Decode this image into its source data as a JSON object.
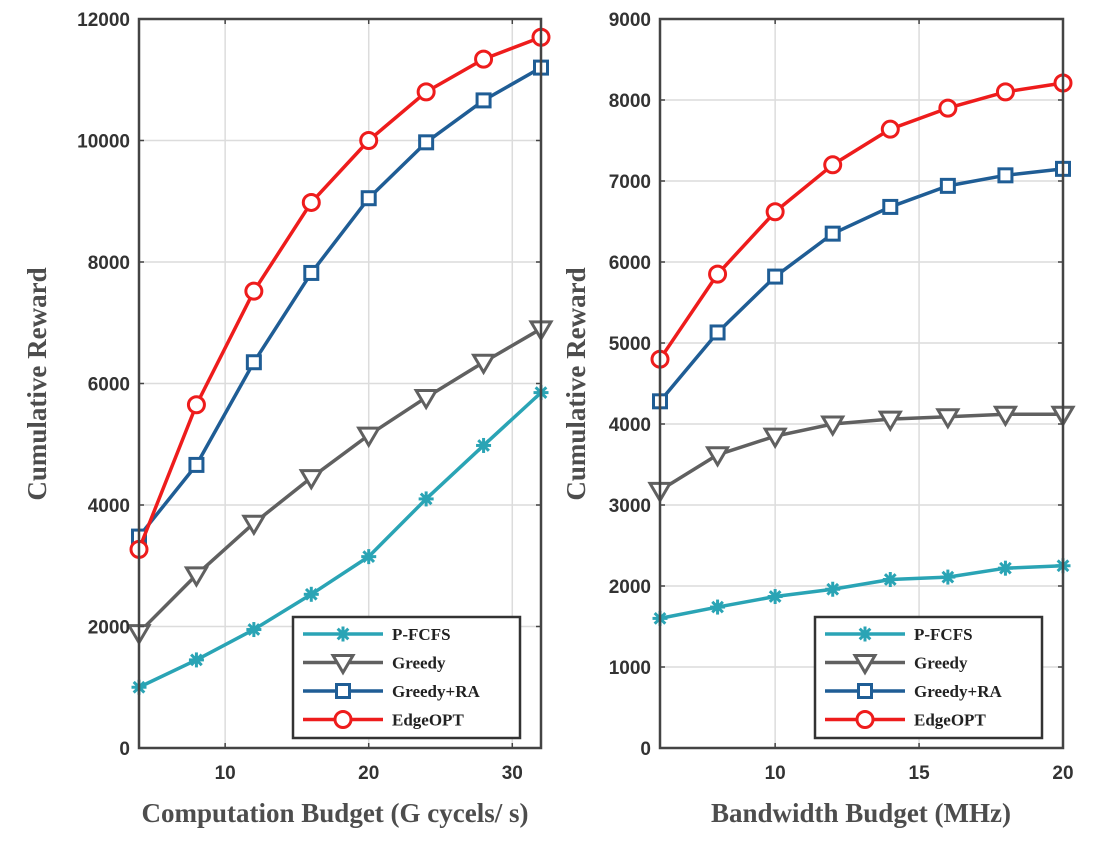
{
  "colors": {
    "P-FCFS": "#2aa4b5",
    "Greedy": "#606060",
    "Greedy+RA": "#1f5d95",
    "EdgeOPT": "#ee1c1c"
  },
  "chart_data": [
    {
      "type": "line",
      "xlabel": "Computation Budget (G cycels/ s)",
      "ylabel": "Cumulative Reward",
      "xlim": [
        4,
        32
      ],
      "ylim": [
        0,
        12000
      ],
      "xticks": [
        10,
        20,
        30
      ],
      "yticks": [
        0,
        2000,
        4000,
        6000,
        8000,
        10000,
        12000
      ],
      "grid": true,
      "legend_position": "bottom-right",
      "x": [
        4,
        8,
        12,
        16,
        20,
        24,
        28,
        32
      ],
      "series": [
        {
          "name": "P-FCFS",
          "marker": "asterisk",
          "values": [
            1000,
            1450,
            1950,
            2530,
            3150,
            4100,
            4980,
            5850
          ]
        },
        {
          "name": "Greedy",
          "marker": "triangle-down",
          "values": [
            1900,
            2850,
            3700,
            4450,
            5150,
            5770,
            6350,
            6900
          ]
        },
        {
          "name": "Greedy+RA",
          "marker": "square",
          "values": [
            3480,
            4660,
            6350,
            7820,
            9050,
            9970,
            10660,
            11200
          ]
        },
        {
          "name": "EdgeOPT",
          "marker": "circle",
          "values": [
            3270,
            5650,
            7520,
            8980,
            10000,
            10800,
            11340,
            11700
          ]
        }
      ]
    },
    {
      "type": "line",
      "xlabel": "Bandwidth Budget (MHz)",
      "ylabel": "Cumulative Reward",
      "xlim": [
        6,
        20
      ],
      "ylim": [
        0,
        9000
      ],
      "xticks": [
        10,
        15,
        20
      ],
      "yticks": [
        0,
        1000,
        2000,
        3000,
        4000,
        5000,
        6000,
        7000,
        8000,
        9000
      ],
      "grid": true,
      "legend_position": "bottom-right",
      "x": [
        6,
        8,
        10,
        12,
        14,
        16,
        18,
        20
      ],
      "series": [
        {
          "name": "P-FCFS",
          "marker": "asterisk",
          "values": [
            1600,
            1740,
            1870,
            1960,
            2080,
            2110,
            2220,
            2250
          ]
        },
        {
          "name": "Greedy",
          "marker": "triangle-down",
          "values": [
            3180,
            3620,
            3850,
            4000,
            4060,
            4090,
            4120,
            4120
          ]
        },
        {
          "name": "Greedy+RA",
          "marker": "square",
          "values": [
            4280,
            5130,
            5820,
            6350,
            6680,
            6940,
            7070,
            7150
          ]
        },
        {
          "name": "EdgeOPT",
          "marker": "circle",
          "values": [
            4800,
            5850,
            6620,
            7200,
            7640,
            7900,
            8100,
            8210
          ]
        }
      ]
    }
  ]
}
